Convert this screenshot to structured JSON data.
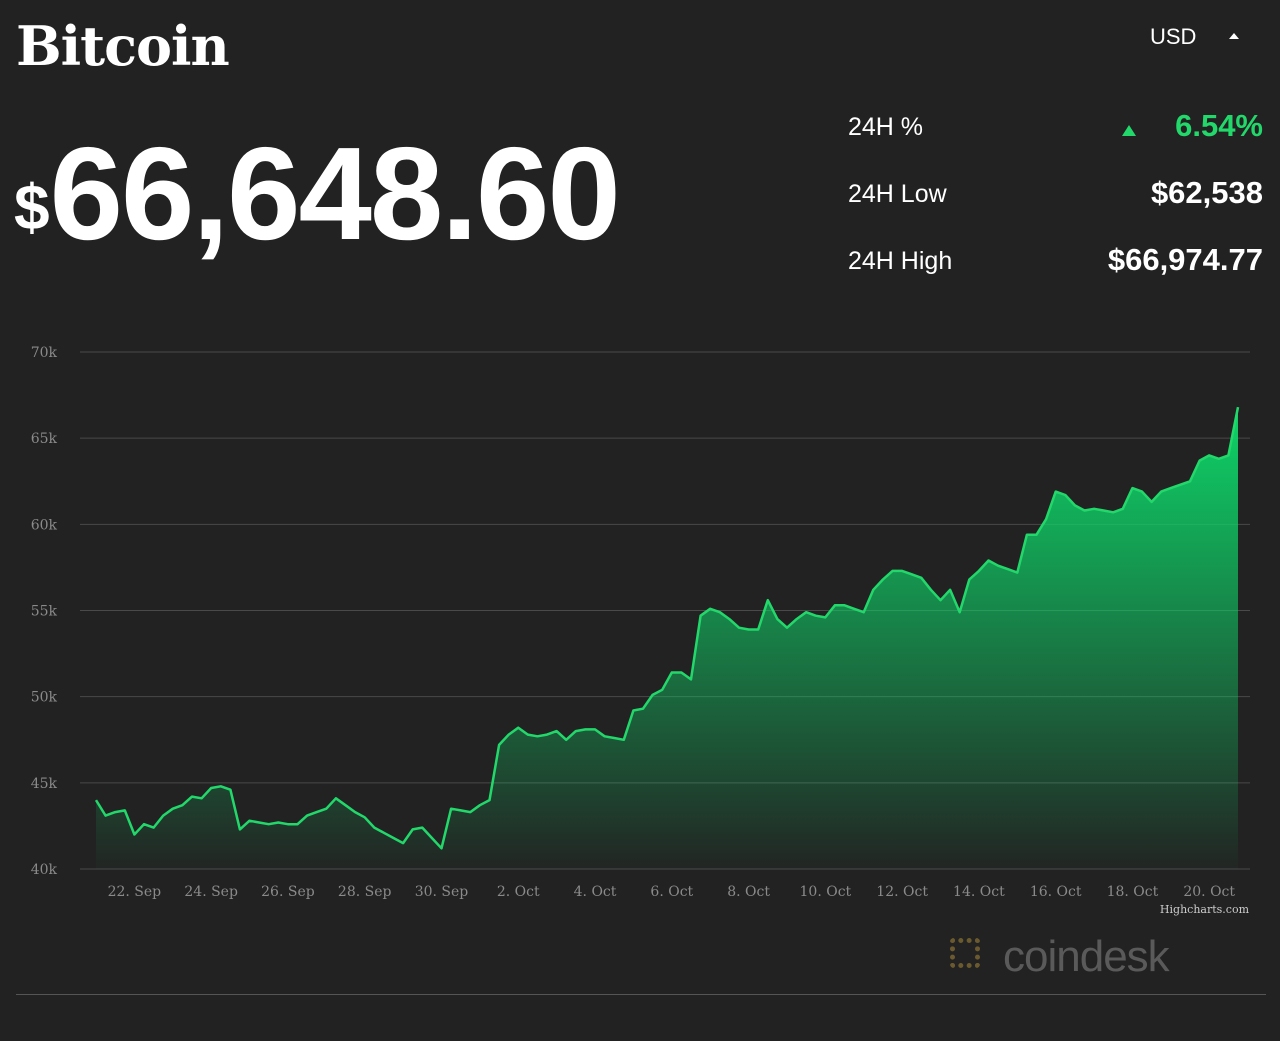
{
  "header": {
    "title": "Bitcoin",
    "currency": "USD",
    "price_symbol": "$",
    "price_amount": "66,648.60"
  },
  "stats": [
    {
      "label": "24H %",
      "value": "6.54%"
    },
    {
      "label": "24H Low",
      "value": "$62,538"
    },
    {
      "label": "24H High",
      "value": "$66,974.77"
    }
  ],
  "brand": "coindesk",
  "chart_data": {
    "type": "area",
    "color": "#22d86b",
    "grid": true,
    "credits": "Highcharts.com",
    "ylim": [
      40000,
      70000
    ],
    "yticks": [
      {
        "value": 40000,
        "label": "40k"
      },
      {
        "value": 45000,
        "label": "45k"
      },
      {
        "value": 50000,
        "label": "50k"
      },
      {
        "value": 55000,
        "label": "55k"
      },
      {
        "value": 60000,
        "label": "60k"
      },
      {
        "value": 65000,
        "label": "65k"
      },
      {
        "value": 70000,
        "label": "70k"
      }
    ],
    "categories": [
      null,
      null,
      null,
      null,
      "22. Sep",
      null,
      null,
      null,
      null,
      null,
      null,
      null,
      "24. Sep",
      null,
      null,
      null,
      null,
      null,
      null,
      null,
      "26. Sep",
      null,
      null,
      null,
      null,
      null,
      null,
      null,
      "28. Sep",
      null,
      null,
      null,
      null,
      null,
      null,
      null,
      "30. Sep",
      null,
      null,
      null,
      null,
      null,
      null,
      null,
      "2. Oct",
      null,
      null,
      null,
      null,
      null,
      null,
      null,
      "4. Oct",
      null,
      null,
      null,
      null,
      null,
      null,
      null,
      "6. Oct",
      null,
      null,
      null,
      null,
      null,
      null,
      null,
      "8. Oct",
      null,
      null,
      null,
      null,
      null,
      null,
      null,
      "10. Oct",
      null,
      null,
      null,
      null,
      null,
      null,
      null,
      "12. Oct",
      null,
      null,
      null,
      null,
      null,
      null,
      null,
      "14. Oct",
      null,
      null,
      null,
      null,
      null,
      null,
      null,
      "16. Oct",
      null,
      null,
      null,
      null,
      null,
      null,
      null,
      "18. Oct",
      null,
      null,
      null,
      null,
      null,
      null,
      null,
      "20. Oct",
      null,
      null,
      null
    ],
    "values": [
      44000,
      43100,
      43300,
      43400,
      42000,
      42600,
      42400,
      43100,
      43500,
      43700,
      44200,
      44100,
      44700,
      44800,
      44600,
      42300,
      42800,
      42700,
      42600,
      42700,
      42600,
      42600,
      43100,
      43300,
      43500,
      44100,
      43700,
      43300,
      43000,
      42400,
      42100,
      41800,
      41500,
      42300,
      42400,
      41800,
      41200,
      43500,
      43400,
      43300,
      43700,
      44000,
      47200,
      47800,
      48200,
      47800,
      47700,
      47800,
      48000,
      47500,
      48000,
      48100,
      48100,
      47700,
      47600,
      47500,
      49200,
      49300,
      50100,
      50400,
      51400,
      51400,
      51000,
      54700,
      55100,
      54900,
      54500,
      54000,
      53900,
      53900,
      55600,
      54500,
      54000,
      54500,
      54900,
      54700,
      54600,
      55300,
      55300,
      55100,
      54900,
      56200,
      56800,
      57300,
      57300,
      57100,
      56900,
      56200,
      55600,
      56200,
      54900,
      56800,
      57300,
      57900,
      57600,
      57400,
      57200,
      59400,
      59400,
      60300,
      61900,
      61700,
      61100,
      60800,
      60900,
      60800,
      60700,
      60900,
      62100,
      61900,
      61300,
      61900,
      62100,
      62300,
      62500,
      63700,
      64000,
      63800,
      64000,
      66800
    ]
  }
}
